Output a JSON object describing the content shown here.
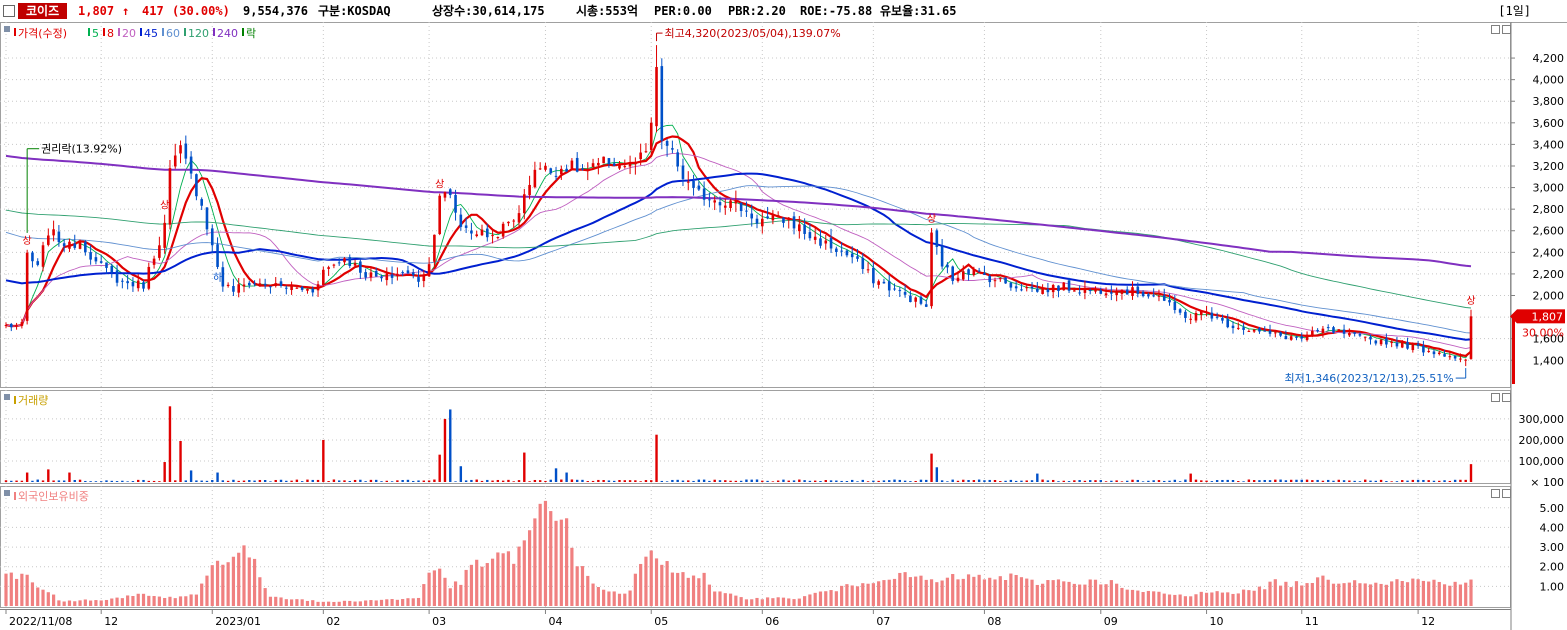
{
  "header": {
    "stock_name": "코이즈",
    "price": "1,807",
    "arrow": "↑",
    "change": "417",
    "change_pct": "(30.00%)",
    "volume": "9,554,376",
    "market": "구분:KOSDAQ",
    "listed_shares": "상장수:30,614,175",
    "market_cap": "시총:553억",
    "per": "PER:0.00",
    "pbr": "PBR:2.20",
    "roe": "ROE:-75.88",
    "float_ratio": "유보율:31.65",
    "period": "[1일]"
  },
  "colors": {
    "up": "#e00000",
    "down": "#0050c8",
    "ma5": "#00b050",
    "ma8": "#e00000",
    "ma20": "#c060c0",
    "ma45": "#0020d0",
    "ma60": "#6090d0",
    "ma120": "#30a070",
    "ma240": "#8030c0",
    "foreign": "#f08080",
    "grid": "#c8c8c8"
  },
  "chart_data": [
    {
      "type": "candlestick",
      "title": "가격(수정)",
      "legend": [
        {
          "label": "가격(수정)",
          "color": "#e00000"
        },
        {
          "label": "5",
          "color": "#00b050"
        },
        {
          "label": "8",
          "color": "#e00000"
        },
        {
          "label": "20",
          "color": "#c060c0"
        },
        {
          "label": "45",
          "color": "#0020d0"
        },
        {
          "label": "60",
          "color": "#6090d0"
        },
        {
          "label": "120",
          "color": "#30a070"
        },
        {
          "label": "240",
          "color": "#8030c0"
        },
        {
          "label": "락",
          "color": "#008000"
        }
      ],
      "y_ticks": [
        1400,
        1600,
        1800,
        2000,
        2200,
        2400,
        2600,
        2800,
        3000,
        3200,
        3400,
        3600,
        3800,
        4000,
        4200
      ],
      "y_tick_labels": [
        "1,400",
        "1,600",
        "1,800",
        "2,000",
        "2,200",
        "2,400",
        "2,600",
        "2,800",
        "3,000",
        "3,200",
        "3,400",
        "3,600",
        "3,800",
        "4,000",
        "4,200"
      ],
      "ylim": [
        1180,
        4460
      ],
      "x_ticks": [
        {
          "index": 0,
          "label": "2022/11/08"
        },
        {
          "index": 18,
          "label": "12"
        },
        {
          "index": 39,
          "label": "2023/01"
        },
        {
          "index": 60,
          "label": "02"
        },
        {
          "index": 80,
          "label": "03"
        },
        {
          "index": 102,
          "label": "04"
        },
        {
          "index": 122,
          "label": "05"
        },
        {
          "index": 143,
          "label": "06"
        },
        {
          "index": 164,
          "label": "07"
        },
        {
          "index": 185,
          "label": "08"
        },
        {
          "index": 207,
          "label": "09"
        },
        {
          "index": 227,
          "label": "10"
        },
        {
          "index": 245,
          "label": "11"
        },
        {
          "index": 267,
          "label": "12"
        }
      ],
      "close_anchors": [
        [
          0,
          1720
        ],
        [
          3,
          1720
        ],
        [
          4,
          2380
        ],
        [
          6,
          2250
        ],
        [
          8,
          2600
        ],
        [
          12,
          2450
        ],
        [
          14,
          2520
        ],
        [
          17,
          2300
        ],
        [
          22,
          2120
        ],
        [
          26,
          2100
        ],
        [
          30,
          2650
        ],
        [
          31,
          3150
        ],
        [
          33,
          3350
        ],
        [
          35,
          3100
        ],
        [
          37,
          2850
        ],
        [
          39,
          2450
        ],
        [
          41,
          2100
        ],
        [
          43,
          2050
        ],
        [
          46,
          2120
        ],
        [
          52,
          2080
        ],
        [
          58,
          2050
        ],
        [
          60,
          2230
        ],
        [
          64,
          2350
        ],
        [
          68,
          2200
        ],
        [
          71,
          2150
        ],
        [
          75,
          2220
        ],
        [
          78,
          2150
        ],
        [
          80,
          2280
        ],
        [
          82,
          2950
        ],
        [
          84,
          2900
        ],
        [
          86,
          2650
        ],
        [
          88,
          2600
        ],
        [
          92,
          2550
        ],
        [
          96,
          2700
        ],
        [
          98,
          2900
        ],
        [
          100,
          3200
        ],
        [
          103,
          3150
        ],
        [
          106,
          3200
        ],
        [
          110,
          3150
        ],
        [
          114,
          3250
        ],
        [
          118,
          3200
        ],
        [
          121,
          3300
        ],
        [
          122,
          3600
        ],
        [
          123,
          4050
        ],
        [
          124,
          3450
        ],
        [
          126,
          3300
        ],
        [
          128,
          3100
        ],
        [
          130,
          2950
        ],
        [
          134,
          2900
        ],
        [
          138,
          2850
        ],
        [
          142,
          2700
        ],
        [
          148,
          2700
        ],
        [
          152,
          2550
        ],
        [
          156,
          2450
        ],
        [
          160,
          2350
        ],
        [
          164,
          2150
        ],
        [
          168,
          2050
        ],
        [
          172,
          1950
        ],
        [
          174,
          1900
        ],
        [
          175,
          2550
        ],
        [
          177,
          2300
        ],
        [
          179,
          2150
        ],
        [
          181,
          2250
        ],
        [
          184,
          2200
        ],
        [
          187,
          2150
        ],
        [
          190,
          2100
        ],
        [
          195,
          2050
        ],
        [
          200,
          2080
        ],
        [
          205,
          2050
        ],
        [
          210,
          2060
        ],
        [
          214,
          2030
        ],
        [
          218,
          2000
        ],
        [
          221,
          1850
        ],
        [
          224,
          1800
        ],
        [
          227,
          1850
        ],
        [
          230,
          1750
        ],
        [
          234,
          1700
        ],
        [
          238,
          1650
        ],
        [
          242,
          1620
        ],
        [
          245,
          1600
        ],
        [
          249,
          1680
        ],
        [
          252,
          1660
        ],
        [
          256,
          1600
        ],
        [
          260,
          1580
        ],
        [
          264,
          1550
        ],
        [
          268,
          1500
        ],
        [
          272,
          1460
        ],
        [
          275,
          1420
        ],
        [
          276,
          1390
        ],
        [
          277,
          1807
        ]
      ],
      "last_close": 1807,
      "last_change": "30.00%",
      "annotations": [
        {
          "text": "최고4,320(2023/05/04),139.07%",
          "index": 123,
          "value": 4320,
          "side": "right"
        },
        {
          "text": "최저1,346(2023/12/13),25.51%",
          "index": 276,
          "value": 1346,
          "side": "left"
        },
        {
          "text": "권리락(13.92%)",
          "index": 4,
          "value": 2580,
          "side": "right"
        }
      ],
      "markers": [
        {
          "index": 4,
          "text": "상"
        },
        {
          "index": 30,
          "text": "상"
        },
        {
          "index": 82,
          "text": "상"
        },
        {
          "index": 175,
          "text": "상"
        },
        {
          "index": 277,
          "text": "상"
        },
        {
          "index": 40,
          "text": "하"
        }
      ]
    },
    {
      "type": "bar",
      "title": "거래량",
      "y_ticks": [
        100,
        100000,
        200000,
        300000
      ],
      "y_tick_labels": [
        "× 100",
        "100,000",
        "200,000",
        "300,000"
      ],
      "ylim": [
        0,
        390000
      ],
      "spikes": [
        [
          4,
          45000
        ],
        [
          8,
          60000
        ],
        [
          12,
          45000
        ],
        [
          30,
          95000
        ],
        [
          31,
          360000
        ],
        [
          33,
          195000
        ],
        [
          35,
          55000
        ],
        [
          40,
          45000
        ],
        [
          60,
          200000
        ],
        [
          82,
          130000
        ],
        [
          83,
          300000
        ],
        [
          84,
          345000
        ],
        [
          86,
          75000
        ],
        [
          98,
          140000
        ],
        [
          104,
          65000
        ],
        [
          106,
          45000
        ],
        [
          123,
          225000
        ],
        [
          175,
          135000
        ],
        [
          176,
          70000
        ],
        [
          195,
          40000
        ],
        [
          224,
          40000
        ],
        [
          277,
          85000
        ]
      ]
    },
    {
      "type": "bar",
      "title": "외국인보유비중",
      "y_ticks": [
        1.0,
        2.0,
        3.0,
        4.0,
        5.0
      ],
      "y_tick_labels": [
        "1.00",
        "2.00",
        "3.00",
        "4.00",
        "5.00"
      ],
      "ylim": [
        0,
        5.6
      ],
      "anchors": [
        [
          0,
          1.6
        ],
        [
          4,
          1.5
        ],
        [
          6,
          0.9
        ],
        [
          8,
          0.8
        ],
        [
          10,
          0.25
        ],
        [
          20,
          0.35
        ],
        [
          26,
          0.6
        ],
        [
          30,
          0.4
        ],
        [
          36,
          0.6
        ],
        [
          38,
          1.6
        ],
        [
          40,
          2.3
        ],
        [
          44,
          2.7
        ],
        [
          46,
          2.7
        ],
        [
          48,
          1.5
        ],
        [
          50,
          0.5
        ],
        [
          60,
          0.2
        ],
        [
          70,
          0.3
        ],
        [
          78,
          0.4
        ],
        [
          80,
          1.8
        ],
        [
          82,
          1.9
        ],
        [
          84,
          1.0
        ],
        [
          86,
          1.2
        ],
        [
          88,
          2.0
        ],
        [
          92,
          2.4
        ],
        [
          96,
          2.5
        ],
        [
          98,
          3.2
        ],
        [
          100,
          4.2
        ],
        [
          102,
          5.1
        ],
        [
          104,
          4.2
        ],
        [
          106,
          4.6
        ],
        [
          108,
          2.2
        ],
        [
          110,
          1.4
        ],
        [
          114,
          0.7
        ],
        [
          118,
          0.7
        ],
        [
          120,
          2.3
        ],
        [
          122,
          2.5
        ],
        [
          124,
          2.2
        ],
        [
          128,
          1.7
        ],
        [
          132,
          1.5
        ],
        [
          134,
          0.7
        ],
        [
          140,
          0.4
        ],
        [
          146,
          0.4
        ],
        [
          150,
          0.4
        ],
        [
          154,
          0.7
        ],
        [
          158,
          0.9
        ],
        [
          162,
          1.2
        ],
        [
          166,
          1.5
        ],
        [
          172,
          1.5
        ],
        [
          176,
          1.2
        ],
        [
          180,
          1.5
        ],
        [
          186,
          1.4
        ],
        [
          190,
          1.5
        ],
        [
          194,
          1.2
        ],
        [
          198,
          1.3
        ],
        [
          204,
          1.2
        ],
        [
          208,
          1.3
        ],
        [
          212,
          0.8
        ],
        [
          216,
          0.7
        ],
        [
          220,
          0.6
        ],
        [
          224,
          0.5
        ],
        [
          228,
          0.8
        ],
        [
          232,
          0.7
        ],
        [
          236,
          0.8
        ],
        [
          240,
          1.2
        ],
        [
          244,
          1.1
        ],
        [
          248,
          1.4
        ],
        [
          252,
          1.3
        ],
        [
          256,
          1.3
        ],
        [
          260,
          1.2
        ],
        [
          264,
          1.3
        ],
        [
          268,
          1.3
        ],
        [
          272,
          1.2
        ],
        [
          277,
          1.2
        ]
      ]
    }
  ]
}
